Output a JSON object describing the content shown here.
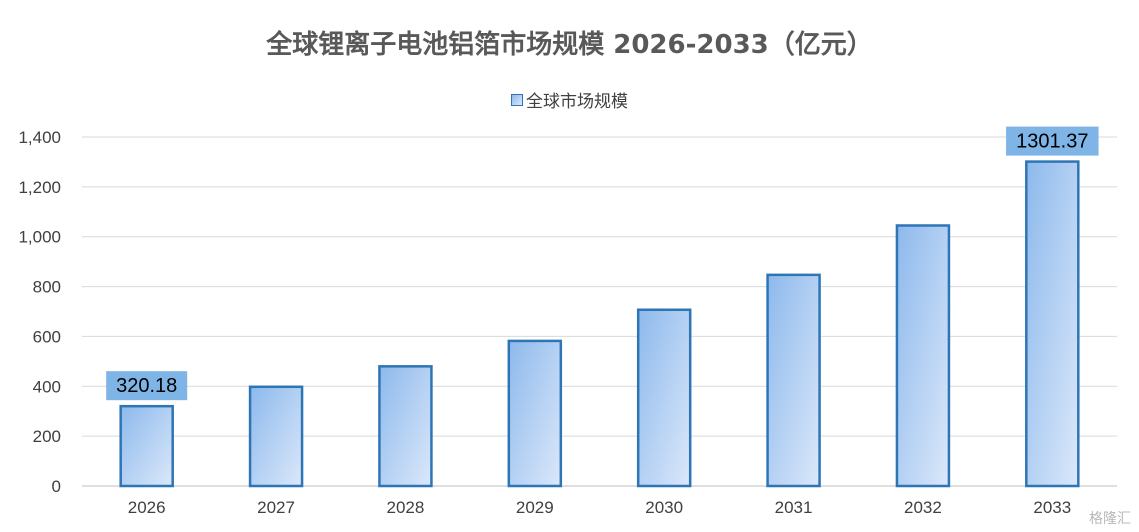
{
  "chart_data": {
    "type": "bar",
    "title": "全球锂离子电池铝箔市场规模 2026-2033（亿元）",
    "categories": [
      "2026",
      "2027",
      "2028",
      "2029",
      "2030",
      "2031",
      "2032",
      "2033"
    ],
    "series": [
      {
        "name": "全球市场规模",
        "values": [
          320.18,
          398,
          480,
          582,
          707,
          847,
          1045,
          1301.37
        ]
      }
    ],
    "data_labels": {
      "2026": "320.18",
      "2033": "1301.37"
    },
    "ylim": [
      0,
      1400
    ],
    "yticks": [
      0,
      200,
      400,
      600,
      800,
      1000,
      1200,
      1400
    ],
    "ytick_labels": [
      "0",
      "200",
      "400",
      "600",
      "800",
      "1,000",
      "1,200",
      "1,400"
    ],
    "grid": true,
    "legend_position": "top",
    "colors": {
      "bar_border": "#2e75b6",
      "bar_fill_start": "#8db9ec",
      "bar_fill_end": "#dbe8fa",
      "label_bg": "#7fb4e6",
      "grid": "#d9d9d9"
    }
  },
  "watermark": "格隆汇"
}
